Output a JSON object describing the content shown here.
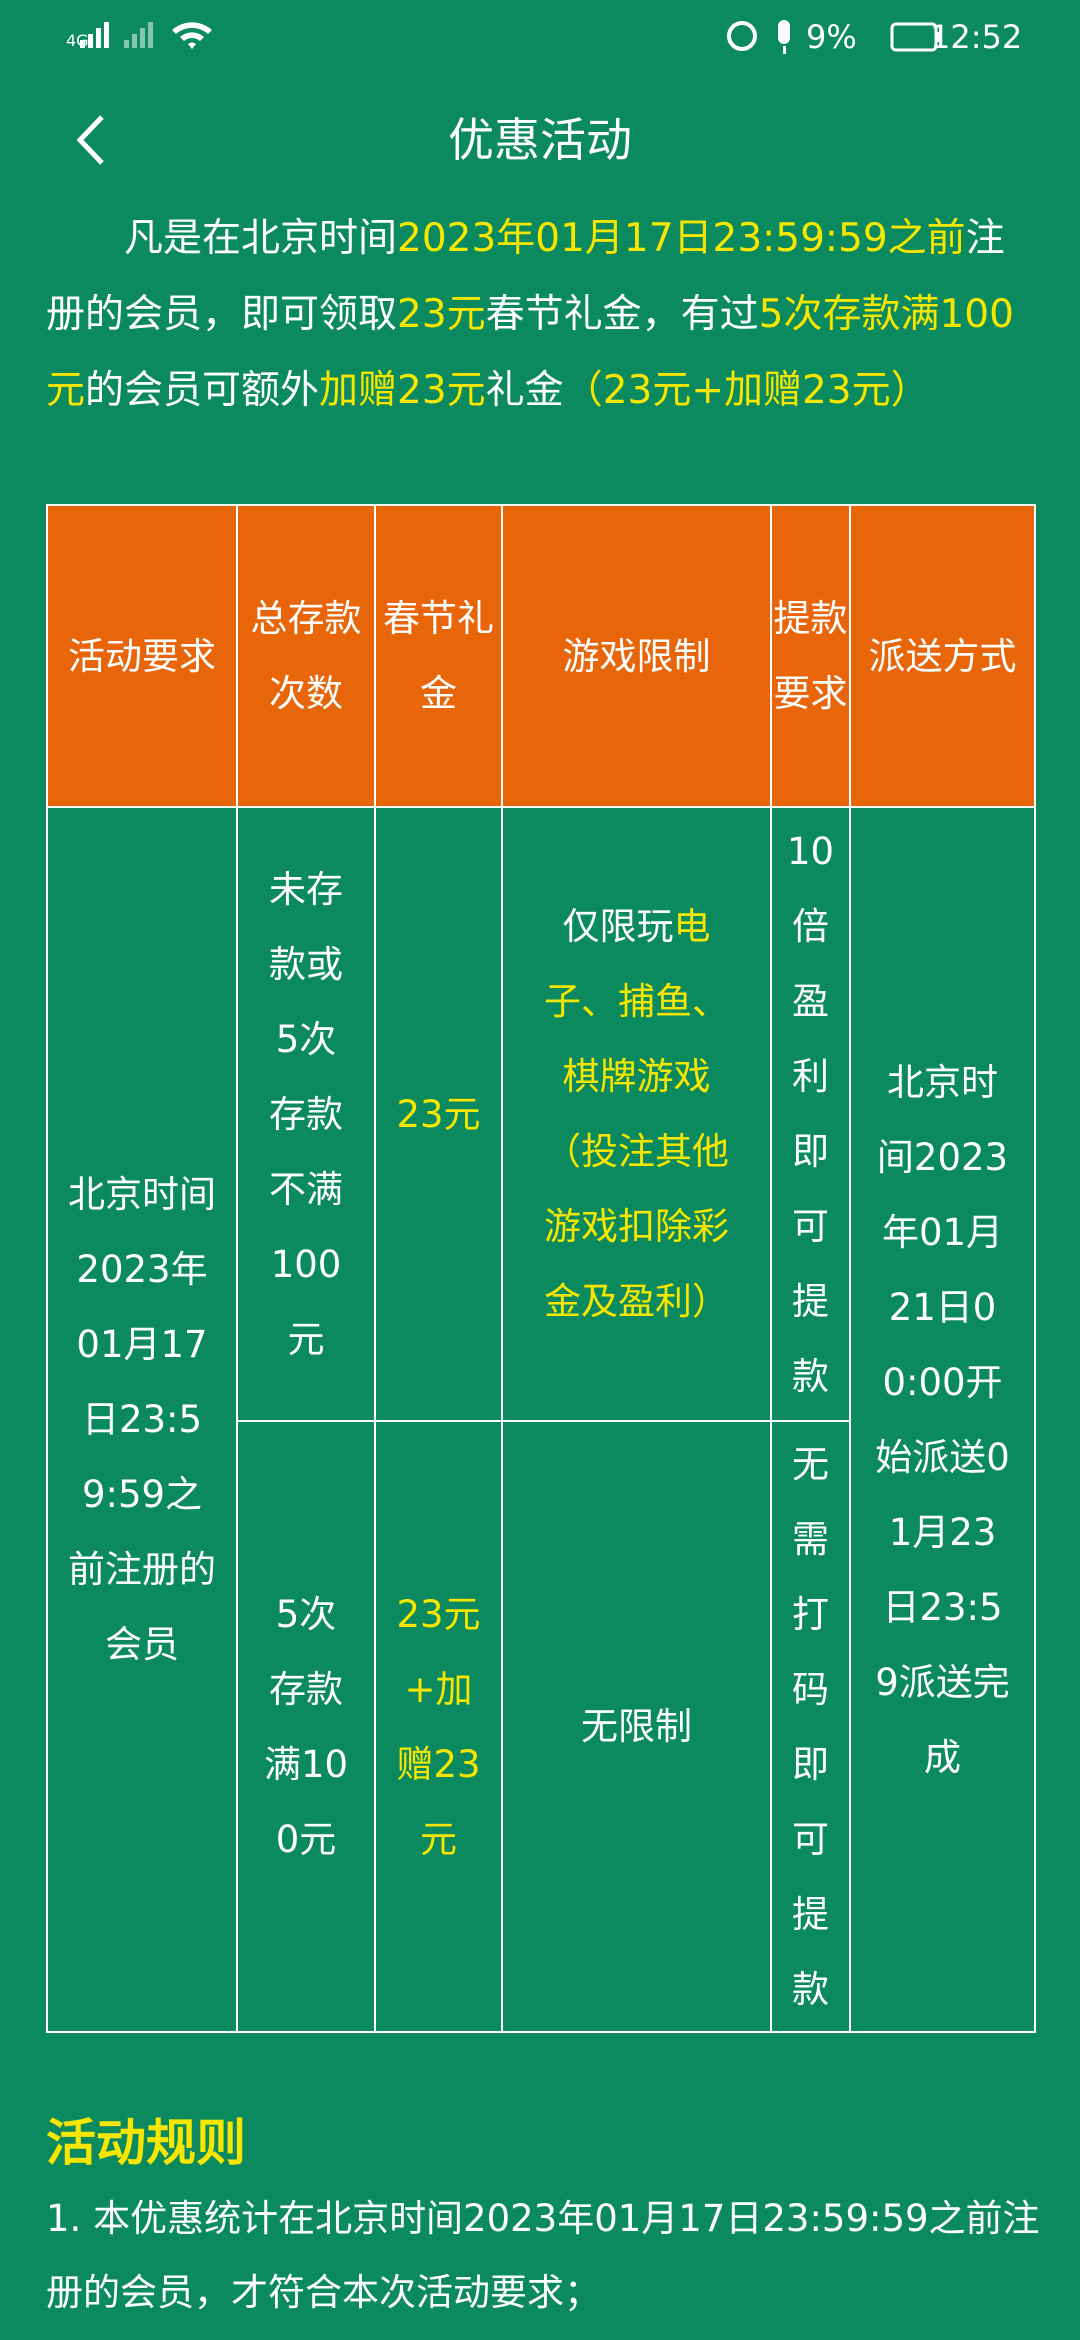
{
  "status_bar": {
    "network": "4G",
    "battery": "9%",
    "time": "12:52"
  },
  "header": {
    "title": "优惠活动"
  },
  "intro": [
    {
      "text": "凡是在北京时间",
      "color": "#ffffff"
    },
    {
      "text": "2023年01月17日23:59:59之前",
      "color": "#f7e600"
    },
    {
      "text": "注册的会员，即可领取",
      "color": "#ffffff"
    },
    {
      "text": "23元",
      "color": "#f7e600"
    },
    {
      "text": "春节礼金，有过",
      "color": "#ffffff"
    },
    {
      "text": "5次存款满100元",
      "color": "#f7e600"
    },
    {
      "text": "的会员可额外",
      "color": "#ffffff"
    },
    {
      "text": "加赠23元",
      "color": "#f7e600"
    },
    {
      "text": "礼金",
      "color": "#ffffff"
    },
    {
      "text": "（23元+加赠23元）",
      "color": "#f7e600"
    }
  ],
  "table": {
    "header": [
      "活动要求",
      "总存款次数",
      "春节礼金",
      "游戏限制",
      "提款要求",
      "派送方式"
    ],
    "rows": [
      [
        [
          {
            "text": "北京时间2023年01月17日23:59:59之前注册的会员",
            "color": "#ffffff"
          }
        ],
        [
          {
            "text": "未存款或5次存款不满100元",
            "color": "#ffffff"
          }
        ],
        [
          {
            "text": "23元",
            "color": "#f7e600"
          }
        ],
        [
          {
            "text": "仅限玩",
            "color": "#ffffff"
          },
          {
            "text": "电子、捕鱼、棋牌游戏（投注其他游戏扣除彩金及盈利）",
            "color": "#f7e600"
          }
        ],
        [
          {
            "text": "10倍盈利即可提款",
            "color": "#ffffff"
          }
        ],
        [
          {
            "text": "北京时间2023年01月21日00:00开始派送01月23日23:59派送完成",
            "color": "#ffffff"
          }
        ]
      ],
      [
        [
          {
            "text": "5次存款满100元",
            "color": "#ffffff"
          }
        ],
        [
          {
            "text": "23元+加赠23元",
            "color": "#f7e600"
          }
        ],
        [
          {
            "text": "无限制",
            "color": "#ffffff"
          }
        ],
        [
          {
            "text": "无需打码即可提款",
            "color": "#ffffff"
          }
        ]
      ]
    ]
  },
  "rules": {
    "title": "活动规则",
    "items": [
      "1. 本优惠统计在北京时间2023年01月17日23:59:59之前注册的会员，才符合本次活动要求；"
    ]
  }
}
